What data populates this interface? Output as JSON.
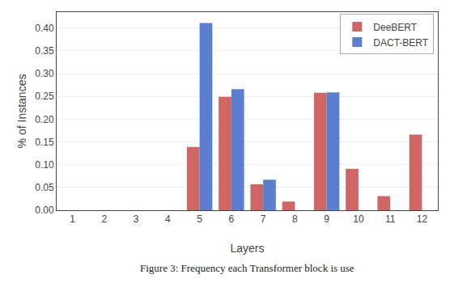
{
  "chart_data": {
    "type": "bar",
    "categories": [
      "1",
      "2",
      "3",
      "4",
      "5",
      "6",
      "7",
      "8",
      "9",
      "10",
      "11",
      "12"
    ],
    "series": [
      {
        "name": "DeeBERT",
        "color": "#cd6665",
        "values": [
          0.0,
          0.0,
          0.0,
          0.0,
          0.139,
          0.249,
          0.057,
          0.019,
          0.258,
          0.091,
          0.031,
          0.166
        ]
      },
      {
        "name": "DACT-BERT",
        "color": "#5b7fce",
        "values": [
          0.0,
          0.0,
          0.0,
          0.0,
          0.411,
          0.266,
          0.067,
          0.0,
          0.259,
          0.0,
          0.0,
          0.0
        ]
      }
    ],
    "xlabel": "Layers",
    "ylabel": "% of Instances",
    "ylim": [
      0.0,
      0.435
    ],
    "yticks": [
      {
        "value": 0.0,
        "label": "0.00"
      },
      {
        "value": 0.05,
        "label": "0.05"
      },
      {
        "value": 0.1,
        "label": "0.10"
      },
      {
        "value": 0.15,
        "label": "0.15"
      },
      {
        "value": 0.2,
        "label": "0.20"
      },
      {
        "value": 0.25,
        "label": "0.25"
      },
      {
        "value": 0.3,
        "label": "0.30"
      },
      {
        "value": 0.35,
        "label": "0.35"
      },
      {
        "value": 0.4,
        "label": "0.40"
      }
    ],
    "grid": true,
    "legend": "upper right",
    "annotations": [
      "Figure 3: Frequency each Transformer block is use"
    ]
  }
}
